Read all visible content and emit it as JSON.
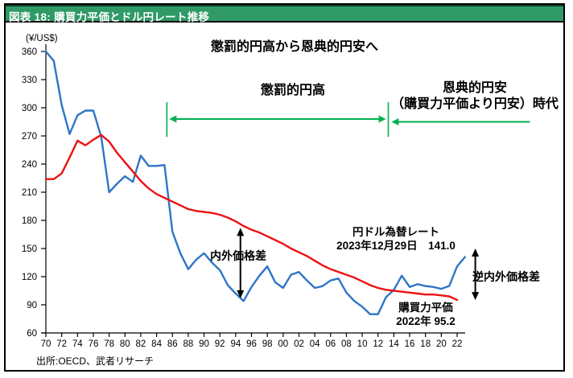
{
  "header": {
    "title": "図表 18: 購買力平価とドル円レート推移"
  },
  "source_note": "出所:OECD、武者リサーチ",
  "colors": {
    "header_green": "#2F9A66",
    "rate_blue": "#2E75C6",
    "ppp_red": "#ED1111",
    "arrow_green": "#00B050",
    "black": "#000000"
  },
  "annotations": {
    "main_heading": "懲罰的円高から恩典的円安へ",
    "left_period_label": "懲罰的円高",
    "right_period_line1": "恩典的円安",
    "right_period_line2": "（購買力平価より円安）時代",
    "rate_label_line1": "円ドル為替レート",
    "rate_label_line2": "2023年12月29日　141.0",
    "ppp_label_line1": "購買力平価",
    "ppp_label_line2": "2022年 95.2",
    "gap_label": "内外価格差",
    "reverse_gap_label": "逆内外価格差",
    "unit_label": "(¥/US$)"
  },
  "chart_data": {
    "type": "line",
    "title": "懲罰的円高から恩典的円安へ",
    "ylabel": "(¥/US$)",
    "ylim": [
      60,
      360
    ],
    "y_ticks": [
      360,
      330,
      300,
      270,
      240,
      210,
      180,
      150,
      120,
      90,
      60
    ],
    "x_tick_labels": [
      "70",
      "72",
      "74",
      "76",
      "78",
      "80",
      "82",
      "84",
      "86",
      "88",
      "90",
      "92",
      "94",
      "96",
      "98",
      "00",
      "02",
      "04",
      "06",
      "08",
      "10",
      "12",
      "14",
      "16",
      "18",
      "20",
      "22"
    ],
    "x_tick_start_year": 1970,
    "x_tick_step_years": 2,
    "grid": false,
    "legend": "inline-labels",
    "series": [
      {
        "key": "rate_line",
        "name": "円ドル為替レート",
        "color": "#2E75C6",
        "start_year": 1970,
        "end_year": 2023,
        "latest_note": "2023年12月29日 141.0",
        "values": [
          360,
          350,
          303,
          272,
          292,
          297,
          297,
          269,
          210,
          219,
          227,
          221,
          249,
          238,
          238,
          239,
          168,
          145,
          128,
          138,
          145,
          135,
          127,
          111,
          102,
          94,
          109,
          121,
          131,
          114,
          108,
          122,
          125,
          116,
          108,
          110,
          116,
          118,
          103,
          94,
          88,
          80,
          80,
          98,
          106,
          121,
          109,
          112,
          110,
          109,
          107,
          110,
          131,
          141
        ]
      },
      {
        "key": "ppp_line",
        "name": "購買力平価",
        "color": "#ED1111",
        "start_year": 1970,
        "end_year": 2022,
        "latest_note": "2022年 95.2",
        "values": [
          224,
          224,
          230,
          247,
          265,
          260,
          266,
          271,
          264,
          252,
          242,
          232,
          222,
          214,
          208,
          204,
          200,
          196,
          192,
          190,
          189,
          188,
          186,
          183,
          179,
          174,
          170,
          167,
          163,
          159,
          155,
          150,
          146,
          142,
          137,
          132,
          128,
          125,
          122,
          119,
          115,
          111,
          108,
          106,
          105,
          104,
          103,
          102,
          101,
          101,
          100,
          99,
          95.2
        ]
      }
    ],
    "period_markers": {
      "dividers": [
        {
          "year": 1985.3,
          "value_top": 306,
          "value_bottom": 269
        },
        {
          "year": 2013.3,
          "value_top": 306,
          "value_bottom": 269
        }
      ],
      "punitive_arrow": {
        "from_year": 1985.6,
        "to_year": 2013.0,
        "value": 288,
        "heads": "both",
        "label": "懲罰的円高"
      },
      "beneficial_arrow": {
        "from_year": 2013.7,
        "to_year": 2031.2,
        "value": 285,
        "heads": "left",
        "label": "恩典的円安（購買力平価より円安）時代"
      }
    },
    "gap_arrows": [
      {
        "year": 1994.6,
        "value_top": 172,
        "value_bottom": 97,
        "label": "内外価格差"
      },
      {
        "year": 2024.3,
        "value_top": 150,
        "value_bottom": 95,
        "label": "逆内外価格差"
      }
    ]
  }
}
